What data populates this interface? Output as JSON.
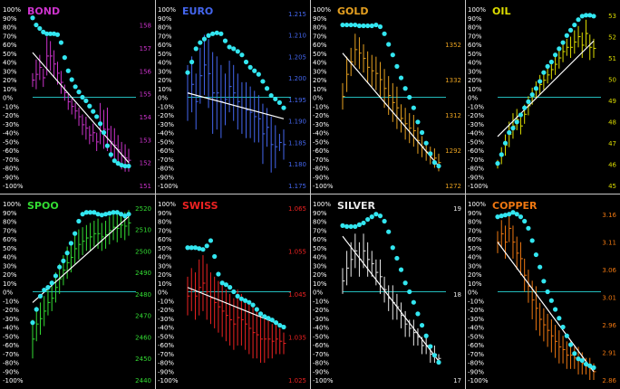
{
  "chart_data": [
    {
      "type": "line",
      "title": "BOND",
      "color": "#cc33cc",
      "left_ticks": [
        "100%",
        "90%",
        "80%",
        "70%",
        "60%",
        "50%",
        "40%",
        "30%",
        "20%",
        "10%",
        "0%",
        "-10%",
        "-20%",
        "-30%",
        "-40%",
        "-50%",
        "-60%",
        "-70%",
        "-80%",
        "-90%",
        "-100%"
      ],
      "right_ticks": [
        "158",
        "157",
        "156",
        "155",
        "154",
        "153",
        "152",
        "151"
      ],
      "right_range": [
        151,
        158.7
      ],
      "osc_range": [
        -100,
        100
      ],
      "oscillator": [
        90,
        82,
        78,
        74,
        72,
        72,
        72,
        71,
        62,
        45,
        30,
        20,
        12,
        6,
        0,
        -4,
        -10,
        -16,
        -22,
        -30,
        -40,
        -55,
        -65,
        -72,
        -75,
        -77,
        -78,
        -78
      ],
      "bars": [
        [
          155.9,
          155.3
        ],
        [
          156.5,
          155.2
        ],
        [
          156.7,
          155.6
        ],
        [
          156.1,
          155.3
        ],
        [
          157.5,
          155.8
        ],
        [
          157.3,
          156.0
        ],
        [
          156.9,
          155.7
        ],
        [
          156.4,
          155.4
        ],
        [
          156.0,
          155.0
        ],
        [
          155.4,
          154.7
        ],
        [
          155.0,
          154.3
        ],
        [
          154.8,
          154.1
        ],
        [
          154.6,
          153.9
        ],
        [
          154.4,
          153.6
        ],
        [
          154.1,
          153.2
        ],
        [
          154.0,
          153.0
        ],
        [
          153.6,
          152.8
        ],
        [
          153.7,
          152.9
        ],
        [
          153.3,
          152.5
        ],
        [
          154.6,
          152.8
        ],
        [
          154.3,
          152.6
        ],
        [
          154.4,
          152.5
        ],
        [
          153.6,
          152.2
        ],
        [
          153.5,
          152.0
        ],
        [
          153.2,
          151.9
        ],
        [
          152.9,
          151.7
        ],
        [
          152.8,
          151.6
        ],
        [
          152.6,
          151.6
        ]
      ],
      "trend": [
        156.8,
        152.0
      ]
    },
    {
      "type": "line",
      "title": "EURO",
      "color": "#4466ee",
      "left_ticks": [
        "100%",
        "90%",
        "80%",
        "70%",
        "60%",
        "50%",
        "40%",
        "30%",
        "20%",
        "10%",
        "0%",
        "-10%",
        "-20%",
        "-30%",
        "-40%",
        "-50%",
        "-60%",
        "-70%",
        "-80%",
        "-90%",
        "-100%"
      ],
      "right_ticks": [
        "1.215",
        "1.210",
        "1.205",
        "1.200",
        "1.195",
        "1.190",
        "1.185",
        "1.180",
        "1.175"
      ],
      "right_range": [
        1.175,
        1.216
      ],
      "osc_range": [
        -100,
        100
      ],
      "oscillator": [
        28,
        40,
        55,
        62,
        66,
        70,
        72,
        73,
        72,
        64,
        57,
        55,
        52,
        48,
        40,
        34,
        30,
        26,
        18,
        10,
        2,
        -2,
        -6,
        -12
      ],
      "bars": [
        [
          1.203,
          1.19
        ],
        [
          1.205,
          1.192
        ],
        [
          1.201,
          1.188
        ],
        [
          1.207,
          1.194
        ],
        [
          1.21,
          1.196
        ],
        [
          1.209,
          1.193
        ],
        [
          1.206,
          1.187
        ],
        [
          1.205,
          1.188
        ],
        [
          1.203,
          1.186
        ],
        [
          1.201,
          1.189
        ],
        [
          1.204,
          1.192
        ],
        [
          1.203,
          1.19
        ],
        [
          1.201,
          1.188
        ],
        [
          1.199,
          1.187
        ],
        [
          1.199,
          1.186
        ],
        [
          1.198,
          1.186
        ],
        [
          1.197,
          1.185
        ],
        [
          1.196,
          1.185
        ],
        [
          1.194,
          1.18
        ],
        [
          1.193,
          1.184
        ],
        [
          1.191,
          1.178
        ],
        [
          1.189,
          1.179
        ],
        [
          1.187,
          1.183
        ],
        [
          1.188,
          1.181
        ]
      ],
      "trend": [
        1.1965,
        1.1905
      ]
    },
    {
      "type": "line",
      "title": "GOLD",
      "color": "#e6a020",
      "left_ticks": [
        "100%",
        "90%",
        "80%",
        "70%",
        "60%",
        "50%",
        "40%",
        "30%",
        "20%",
        "10%",
        "0%",
        "-10%",
        "-20%",
        "-30%",
        "-40%",
        "-50%",
        "-60%",
        "-70%",
        "-80%",
        "-90%",
        "-100%"
      ],
      "right_ticks": [
        "1352",
        "1332",
        "1312",
        "1292",
        "1272"
      ],
      "right_range": [
        1272,
        1372
      ],
      "osc_range": [
        -100,
        100
      ],
      "oscillator": [
        82,
        82,
        82,
        82,
        81,
        81,
        81,
        81,
        82,
        80,
        72,
        60,
        48,
        35,
        22,
        10,
        0,
        -12,
        -28,
        -40,
        -52,
        -64,
        -74,
        -78
      ],
      "bars": [
        [
          1330,
          1315
        ],
        [
          1345,
          1325
        ],
        [
          1350,
          1334
        ],
        [
          1358,
          1340
        ],
        [
          1356,
          1338
        ],
        [
          1352,
          1336
        ],
        [
          1348,
          1330
        ],
        [
          1346,
          1328
        ],
        [
          1345,
          1326
        ],
        [
          1342,
          1322
        ],
        [
          1338,
          1316
        ],
        [
          1334,
          1312
        ],
        [
          1330,
          1308
        ],
        [
          1328,
          1304
        ],
        [
          1318,
          1302
        ],
        [
          1316,
          1298
        ],
        [
          1313,
          1296
        ],
        [
          1312,
          1294
        ],
        [
          1305,
          1290
        ],
        [
          1300,
          1288
        ],
        [
          1296,
          1286
        ],
        [
          1294,
          1284
        ],
        [
          1293,
          1282
        ],
        [
          1290,
          1280
        ]
      ],
      "trend": [
        1347,
        1283
      ]
    },
    {
      "type": "line",
      "title": "OIL",
      "color": "#dddd00",
      "left_ticks": [
        "100%",
        "90%",
        "80%",
        "70%",
        "60%",
        "50%",
        "40%",
        "30%",
        "20%",
        "10%",
        "0%",
        "-10%",
        "-20%",
        "-30%",
        "-40%",
        "-50%",
        "-60%",
        "-70%",
        "-80%",
        "-90%",
        "-100%"
      ],
      "right_ticks": [
        "53",
        "52",
        "51",
        "50",
        "49",
        "48",
        "47",
        "46",
        "45"
      ],
      "right_range": [
        45,
        53.3
      ],
      "osc_range": [
        -100,
        100
      ],
      "oscillator": [
        -75,
        -65,
        -52,
        -40,
        -35,
        -28,
        -20,
        -12,
        -5,
        3,
        10,
        18,
        28,
        35,
        40,
        48,
        55,
        62,
        70,
        76,
        82,
        88,
        92,
        93,
        93,
        92
      ],
      "bars": [
        [
          46.2,
          45.8
        ],
        [
          46.8,
          46.0
        ],
        [
          47.4,
          46.4
        ],
        [
          48.0,
          46.8
        ],
        [
          48.4,
          47.2
        ],
        [
          48.6,
          47.6
        ],
        [
          48.2,
          47.4
        ],
        [
          48.8,
          47.9
        ],
        [
          49.2,
          48.3
        ],
        [
          49.6,
          48.8
        ],
        [
          49.9,
          49.1
        ],
        [
          50.2,
          49.3
        ],
        [
          50.4,
          49.5
        ],
        [
          50.6,
          49.8
        ],
        [
          50.9,
          50.0
        ],
        [
          51.2,
          50.2
        ],
        [
          51.5,
          50.5
        ],
        [
          51.8,
          50.8
        ],
        [
          51.9,
          51.1
        ],
        [
          52.0,
          51.0
        ],
        [
          52.3,
          51.2
        ],
        [
          52.5,
          51.5
        ],
        [
          52.2,
          51.0
        ],
        [
          52.8,
          51.5
        ],
        [
          52.1,
          50.9
        ],
        [
          51.9,
          51.0
        ]
      ],
      "trend": [
        47.3,
        51.8
      ]
    },
    {
      "type": "line",
      "title": "SPOO",
      "color": "#33dd33",
      "left_ticks": [
        "100%",
        "90%",
        "80%",
        "70%",
        "60%",
        "50%",
        "40%",
        "30%",
        "20%",
        "10%",
        "0%",
        "-10%",
        "-20%",
        "-30%",
        "-40%",
        "-50%",
        "-60%",
        "-70%",
        "-80%",
        "-90%",
        "-100%"
      ],
      "right_ticks": [
        "2520",
        "2510",
        "2500",
        "2490",
        "2480",
        "2470",
        "2460",
        "2450",
        "2440"
      ],
      "right_range": [
        2440,
        2522
      ],
      "osc_range": [
        -100,
        100
      ],
      "oscillator": [
        -35,
        -20,
        -5,
        2,
        5,
        10,
        18,
        28,
        35,
        44,
        55,
        66,
        80,
        88,
        90,
        90,
        90,
        88,
        87,
        88,
        89,
        90,
        90,
        88,
        86,
        88
      ],
      "bars": [
        [
          2468,
          2450
        ],
        [
          2474,
          2458
        ],
        [
          2476,
          2461
        ],
        [
          2479,
          2465
        ],
        [
          2482,
          2470
        ],
        [
          2484,
          2472
        ],
        [
          2490,
          2476
        ],
        [
          2494,
          2480
        ],
        [
          2498,
          2484
        ],
        [
          2502,
          2487
        ],
        [
          2504,
          2490
        ],
        [
          2508,
          2494
        ],
        [
          2510,
          2496
        ],
        [
          2511,
          2498
        ],
        [
          2512,
          2500
        ],
        [
          2513,
          2500
        ],
        [
          2514,
          2502
        ],
        [
          2515,
          2501
        ],
        [
          2513,
          2500
        ],
        [
          2514,
          2501
        ],
        [
          2516,
          2503
        ],
        [
          2517,
          2505
        ],
        [
          2517,
          2504
        ],
        [
          2518,
          2506
        ],
        [
          2518,
          2505
        ],
        [
          2519,
          2507
        ]
      ],
      "trend": [
        2476,
        2516
      ]
    },
    {
      "type": "line",
      "title": "SWISS",
      "color": "#ee2222",
      "left_ticks": [
        "100%",
        "90%",
        "80%",
        "70%",
        "60%",
        "50%",
        "40%",
        "30%",
        "20%",
        "10%",
        "0%",
        "-10%",
        "-20%",
        "-30%",
        "-40%",
        "-50%",
        "-60%",
        "-70%",
        "-80%",
        "-90%",
        "-100%"
      ],
      "right_ticks": [
        "1.065",
        "1.055",
        "1.045",
        "1.035",
        "1.025"
      ],
      "right_range": [
        1.025,
        1.066
      ],
      "osc_range": [
        -100,
        100
      ],
      "oscillator": [
        50,
        50,
        50,
        49,
        48,
        52,
        58,
        40,
        20,
        10,
        8,
        5,
        0,
        -5,
        -8,
        -10,
        -12,
        -15,
        -20,
        -25,
        -28,
        -30,
        -32,
        -35,
        -38,
        -40
      ],
      "bars": [
        [
          1.049,
          1.04
        ],
        [
          1.051,
          1.041
        ],
        [
          1.05,
          1.039
        ],
        [
          1.053,
          1.04
        ],
        [
          1.054,
          1.041
        ],
        [
          1.052,
          1.039
        ],
        [
          1.05,
          1.038
        ],
        [
          1.049,
          1.037
        ],
        [
          1.048,
          1.036
        ],
        [
          1.047,
          1.035
        ],
        [
          1.046,
          1.034
        ],
        [
          1.045,
          1.033
        ],
        [
          1.044,
          1.032
        ],
        [
          1.046,
          1.033
        ],
        [
          1.045,
          1.033
        ],
        [
          1.044,
          1.032
        ],
        [
          1.043,
          1.031
        ],
        [
          1.042,
          1.03
        ],
        [
          1.041,
          1.03
        ],
        [
          1.04,
          1.029
        ],
        [
          1.04,
          1.029
        ],
        [
          1.039,
          1.03
        ],
        [
          1.038,
          1.03
        ],
        [
          1.038,
          1.031
        ],
        [
          1.037,
          1.031
        ],
        [
          1.036,
          1.031
        ]
      ],
      "trend": [
        1.0465,
        1.0375
      ]
    },
    {
      "type": "line",
      "title": "SILVER",
      "color": "#e8e8e8",
      "left_ticks": [
        "100%",
        "90%",
        "80%",
        "70%",
        "60%",
        "50%",
        "40%",
        "30%",
        "20%",
        "10%",
        "0%",
        "-10%",
        "-20%",
        "-30%",
        "-40%",
        "-50%",
        "-60%",
        "-70%",
        "-80%",
        "-90%",
        "-100%"
      ],
      "right_ticks": [
        "19",
        "18",
        "17"
      ],
      "right_range": [
        17,
        19.05
      ],
      "osc_range": [
        -100,
        100
      ],
      "oscillator": [
        75,
        74,
        74,
        74,
        76,
        78,
        82,
        85,
        88,
        86,
        80,
        68,
        50,
        38,
        25,
        10,
        0,
        -12,
        -25,
        -38,
        -50,
        -62,
        -72,
        -80
      ],
      "bars": [
        [
          18.3,
          18.0
        ],
        [
          18.5,
          18.1
        ],
        [
          18.6,
          18.2
        ],
        [
          18.7,
          18.3
        ],
        [
          18.6,
          18.2
        ],
        [
          18.7,
          18.3
        ],
        [
          18.6,
          18.2
        ],
        [
          18.5,
          18.2
        ],
        [
          18.4,
          18.1
        ],
        [
          18.4,
          18.0
        ],
        [
          18.2,
          17.9
        ],
        [
          18.1,
          17.8
        ],
        [
          18.1,
          17.7
        ],
        [
          18.0,
          17.7
        ],
        [
          17.9,
          17.6
        ],
        [
          17.8,
          17.5
        ],
        [
          17.7,
          17.5
        ],
        [
          17.7,
          17.4
        ],
        [
          17.6,
          17.4
        ],
        [
          17.5,
          17.3
        ],
        [
          17.5,
          17.3
        ],
        [
          17.4,
          17.2
        ],
        [
          17.4,
          17.2
        ],
        [
          17.3,
          17.2
        ]
      ],
      "trend": [
        18.67,
        17.22
      ]
    },
    {
      "type": "line",
      "title": "COPPER",
      "color": "#ee7711",
      "left_ticks": [
        "100%",
        "90%",
        "80%",
        "70%",
        "60%",
        "50%",
        "40%",
        "30%",
        "20%",
        "10%",
        "0%",
        "-10%",
        "-20%",
        "-30%",
        "-40%",
        "-50%",
        "-60%",
        "-70%",
        "-80%",
        "-90%",
        "-100%"
      ],
      "right_ticks": [
        "3.16",
        "3.11",
        "3.06",
        "3.01",
        "2.96",
        "2.91",
        "2.86"
      ],
      "right_range": [
        2.86,
        3.18
      ],
      "osc_range": [
        -100,
        100
      ],
      "oscillator": [
        85,
        86,
        87,
        88,
        90,
        88,
        85,
        80,
        72,
        58,
        42,
        28,
        12,
        0,
        -10,
        -20,
        -30,
        -40,
        -50,
        -60,
        -70,
        -76,
        -78,
        -82,
        -84,
        -86
      ],
      "bars": [
        [
          3.13,
          3.09
        ],
        [
          3.15,
          3.1
        ],
        [
          3.14,
          3.08
        ],
        [
          3.16,
          3.11
        ],
        [
          3.14,
          3.08
        ],
        [
          3.12,
          3.06
        ],
        [
          3.11,
          3.05
        ],
        [
          3.08,
          3.02
        ],
        [
          3.06,
          3.0
        ],
        [
          3.04,
          2.97
        ],
        [
          3.03,
          2.95
        ],
        [
          3.0,
          2.94
        ],
        [
          2.99,
          2.93
        ],
        [
          2.98,
          2.92
        ],
        [
          2.97,
          2.91
        ],
        [
          2.96,
          2.9
        ],
        [
          2.95,
          2.89
        ],
        [
          2.94,
          2.89
        ],
        [
          2.93,
          2.88
        ],
        [
          2.93,
          2.88
        ],
        [
          2.92,
          2.88
        ],
        [
          2.92,
          2.87
        ],
        [
          2.91,
          2.87
        ],
        [
          2.9,
          2.87
        ],
        [
          2.9,
          2.86
        ],
        [
          2.89,
          2.86
        ]
      ],
      "trend": [
        3.11,
        2.875
      ]
    }
  ]
}
